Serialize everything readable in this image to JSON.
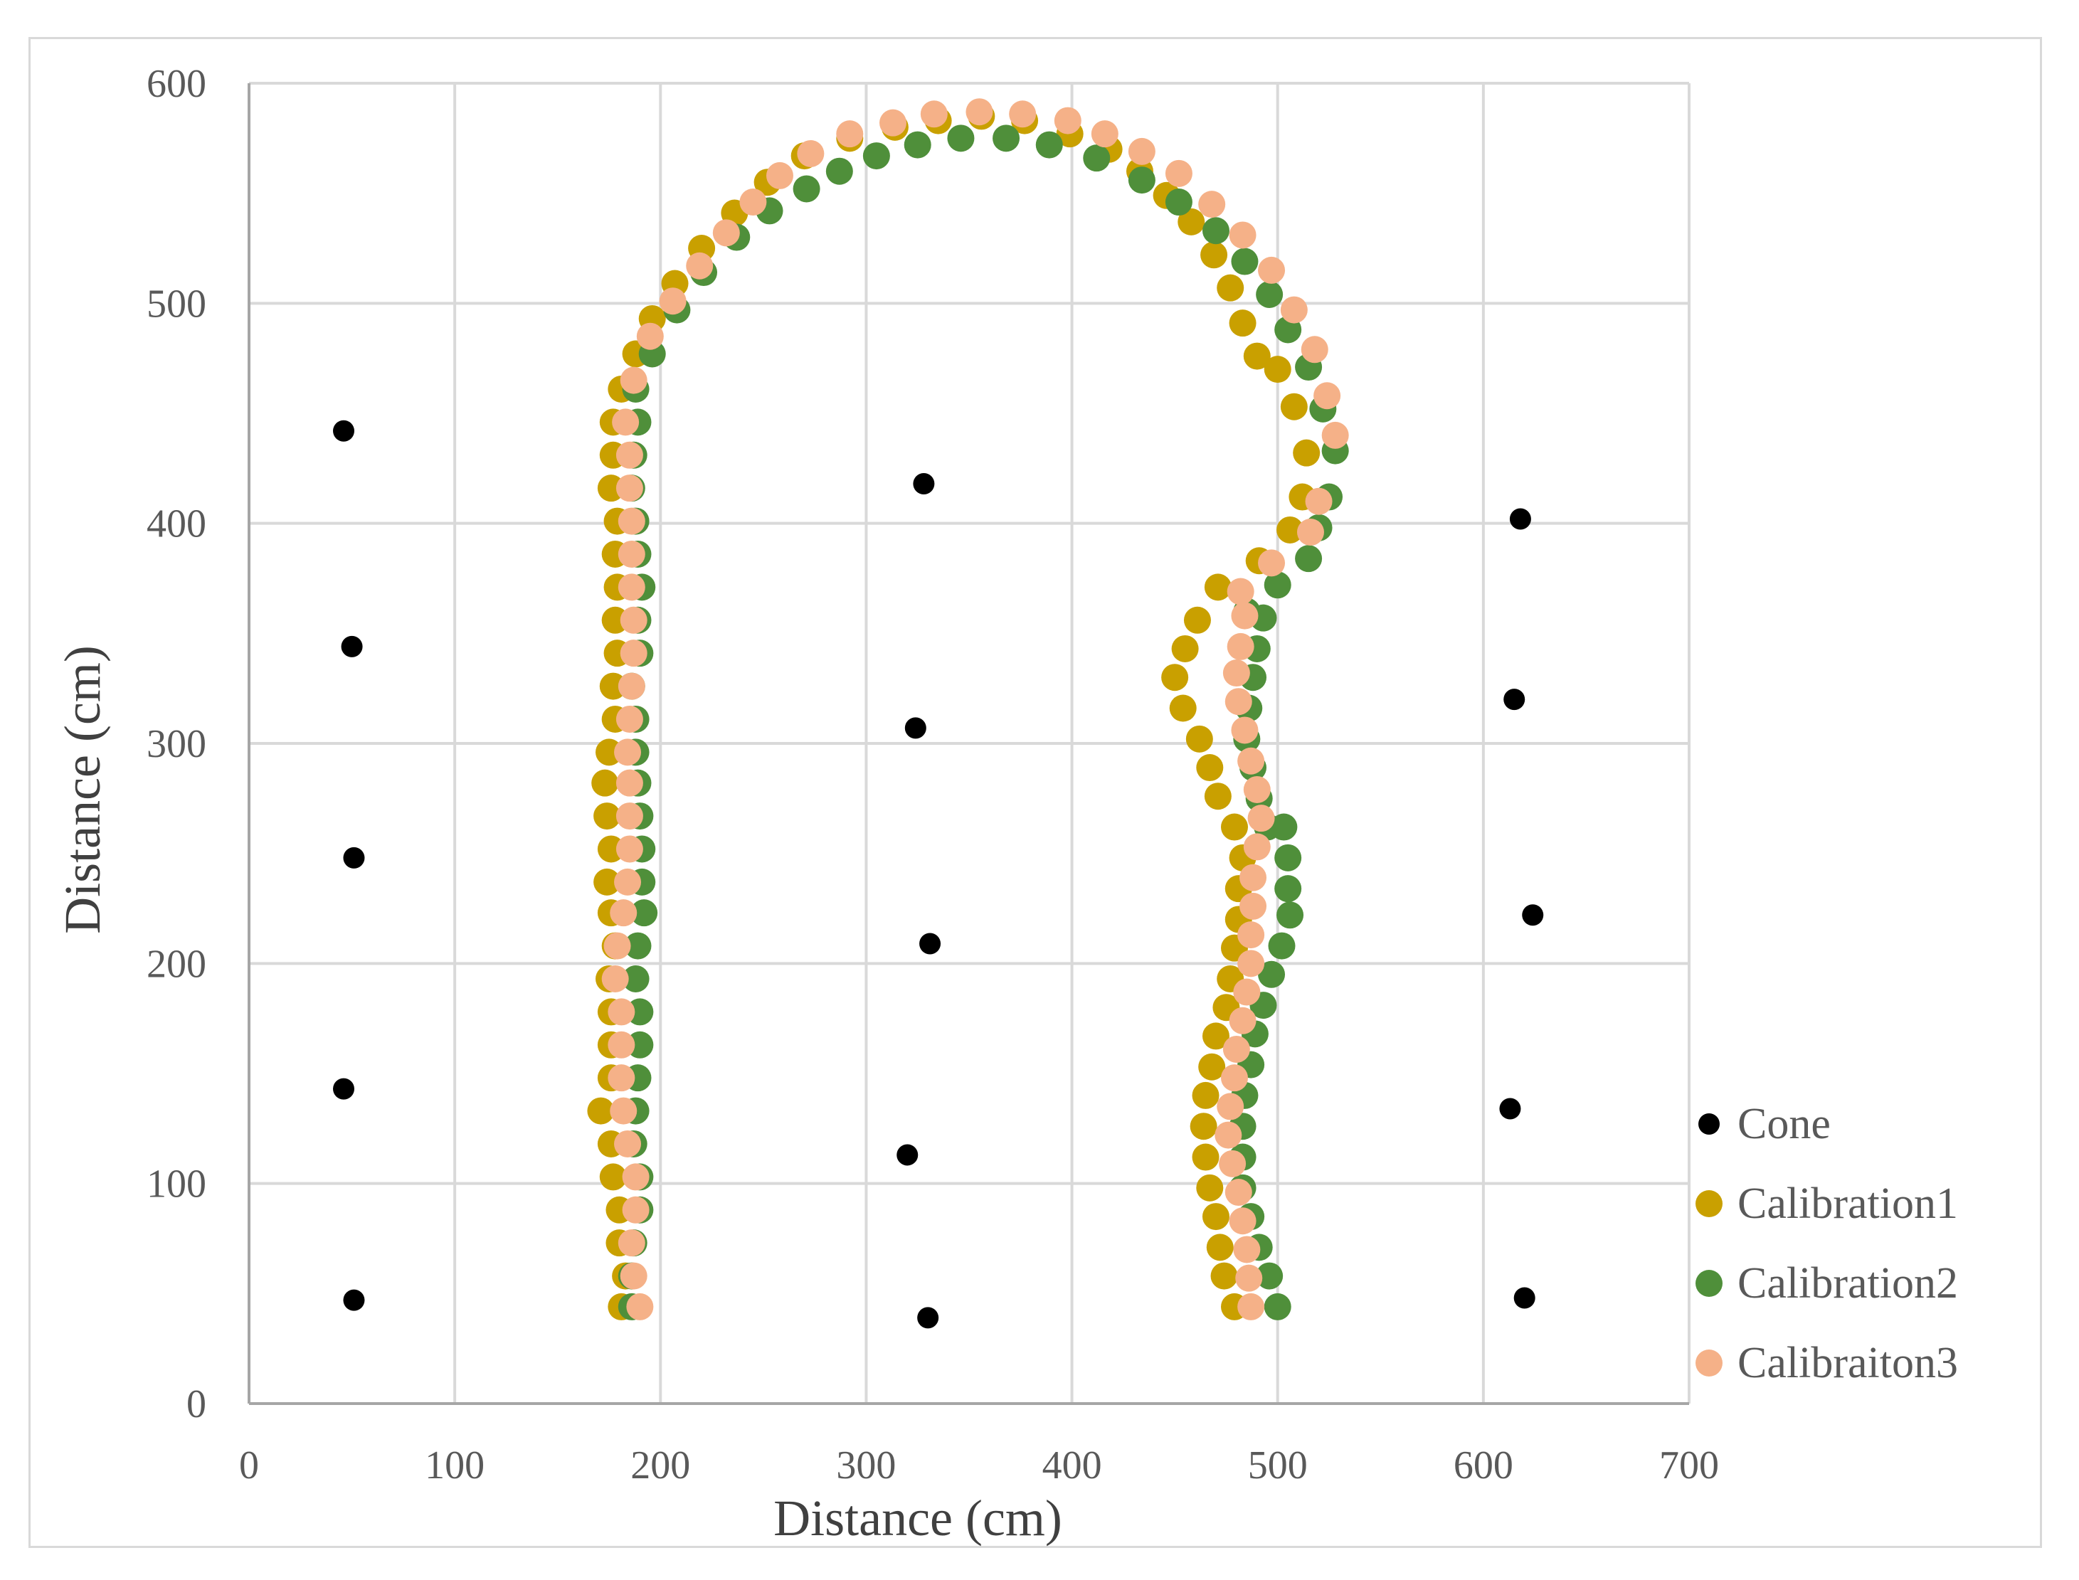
{
  "chart_data": {
    "type": "scatter",
    "title": "",
    "xlabel": "Distance (cm)",
    "ylabel": "Distance (cm)",
    "xlim": [
      0,
      700
    ],
    "ylim": [
      0,
      600
    ],
    "x_ticks": [
      0,
      100,
      200,
      300,
      400,
      500,
      600,
      700
    ],
    "y_ticks": [
      0,
      100,
      200,
      300,
      400,
      500,
      600
    ],
    "grid": true,
    "legend_position": "bottom-right",
    "series": [
      {
        "name": "Cone",
        "color": "#000000",
        "marker": "small-dot",
        "points": [
          [
            46,
            442
          ],
          [
            50,
            344
          ],
          [
            51,
            248
          ],
          [
            46,
            143
          ],
          [
            51,
            47
          ],
          [
            328,
            418
          ],
          [
            324,
            307
          ],
          [
            331,
            209
          ],
          [
            320,
            113
          ],
          [
            330,
            39
          ],
          [
            618,
            402
          ],
          [
            615,
            320
          ],
          [
            624,
            222
          ],
          [
            613,
            134
          ],
          [
            620,
            48
          ]
        ]
      },
      {
        "name": "Calibration1",
        "color": "#c9a000",
        "marker": "large-dot",
        "points": [
          [
            181,
            44
          ],
          [
            183,
            58
          ],
          [
            180,
            73
          ],
          [
            180,
            88
          ],
          [
            177,
            103
          ],
          [
            176,
            118
          ],
          [
            171,
            133
          ],
          [
            176,
            148
          ],
          [
            176,
            163
          ],
          [
            176,
            178
          ],
          [
            175,
            193
          ],
          [
            178,
            208
          ],
          [
            176,
            223
          ],
          [
            174,
            237
          ],
          [
            176,
            252
          ],
          [
            174,
            267
          ],
          [
            173,
            282
          ],
          [
            175,
            296
          ],
          [
            178,
            311
          ],
          [
            177,
            326
          ],
          [
            179,
            341
          ],
          [
            178,
            356
          ],
          [
            179,
            371
          ],
          [
            178,
            386
          ],
          [
            179,
            401
          ],
          [
            176,
            416
          ],
          [
            177,
            431
          ],
          [
            177,
            446
          ],
          [
            181,
            461
          ],
          [
            188,
            477
          ],
          [
            196,
            493
          ],
          [
            207,
            509
          ],
          [
            220,
            525
          ],
          [
            236,
            541
          ],
          [
            252,
            555
          ],
          [
            270,
            567
          ],
          [
            292,
            575
          ],
          [
            314,
            580
          ],
          [
            335,
            583
          ],
          [
            356,
            585
          ],
          [
            377,
            583
          ],
          [
            399,
            577
          ],
          [
            418,
            570
          ],
          [
            433,
            560
          ],
          [
            446,
            549
          ],
          [
            458,
            537
          ],
          [
            469,
            522
          ],
          [
            477,
            507
          ],
          [
            483,
            491
          ],
          [
            490,
            476
          ],
          [
            500,
            470
          ],
          [
            508,
            453
          ],
          [
            514,
            432
          ],
          [
            512,
            412
          ],
          [
            506,
            397
          ],
          [
            491,
            383
          ],
          [
            471,
            371
          ],
          [
            461,
            356
          ],
          [
            455,
            343
          ],
          [
            450,
            330
          ],
          [
            454,
            316
          ],
          [
            462,
            302
          ],
          [
            467,
            289
          ],
          [
            471,
            276
          ],
          [
            479,
            262
          ],
          [
            483,
            248
          ],
          [
            481,
            234
          ],
          [
            481,
            220
          ],
          [
            479,
            207
          ],
          [
            477,
            193
          ],
          [
            475,
            180
          ],
          [
            470,
            167
          ],
          [
            468,
            153
          ],
          [
            465,
            140
          ],
          [
            464,
            126
          ],
          [
            465,
            112
          ],
          [
            467,
            98
          ],
          [
            470,
            85
          ],
          [
            472,
            71
          ],
          [
            474,
            58
          ],
          [
            479,
            44
          ]
        ]
      },
      {
        "name": "Calibration2",
        "color": "#4f8f3a",
        "marker": "large-dot",
        "points": [
          [
            186,
            44
          ],
          [
            186,
            58
          ],
          [
            187,
            73
          ],
          [
            190,
            88
          ],
          [
            190,
            103
          ],
          [
            187,
            118
          ],
          [
            188,
            133
          ],
          [
            189,
            148
          ],
          [
            190,
            163
          ],
          [
            190,
            178
          ],
          [
            188,
            193
          ],
          [
            189,
            208
          ],
          [
            192,
            223
          ],
          [
            191,
            237
          ],
          [
            191,
            252
          ],
          [
            190,
            267
          ],
          [
            189,
            282
          ],
          [
            188,
            296
          ],
          [
            188,
            311
          ],
          [
            186,
            326
          ],
          [
            190,
            341
          ],
          [
            189,
            356
          ],
          [
            191,
            371
          ],
          [
            189,
            386
          ],
          [
            188,
            401
          ],
          [
            186,
            416
          ],
          [
            187,
            431
          ],
          [
            189,
            446
          ],
          [
            188,
            461
          ],
          [
            196,
            477
          ],
          [
            208,
            497
          ],
          [
            221,
            514
          ],
          [
            237,
            530
          ],
          [
            253,
            542
          ],
          [
            271,
            552
          ],
          [
            287,
            560
          ],
          [
            305,
            567
          ],
          [
            325,
            572
          ],
          [
            346,
            575
          ],
          [
            368,
            575
          ],
          [
            389,
            572
          ],
          [
            412,
            566
          ],
          [
            434,
            556
          ],
          [
            452,
            546
          ],
          [
            470,
            533
          ],
          [
            484,
            519
          ],
          [
            496,
            504
          ],
          [
            505,
            488
          ],
          [
            515,
            471
          ],
          [
            522,
            452
          ],
          [
            528,
            433
          ],
          [
            525,
            412
          ],
          [
            520,
            398
          ],
          [
            515,
            384
          ],
          [
            500,
            372
          ],
          [
            485,
            360
          ],
          [
            493,
            357
          ],
          [
            490,
            343
          ],
          [
            488,
            330
          ],
          [
            486,
            316
          ],
          [
            485,
            302
          ],
          [
            488,
            289
          ],
          [
            491,
            275
          ],
          [
            495,
            262
          ],
          [
            503,
            262
          ],
          [
            505,
            248
          ],
          [
            505,
            234
          ],
          [
            506,
            222
          ],
          [
            502,
            208
          ],
          [
            497,
            195
          ],
          [
            493,
            181
          ],
          [
            489,
            168
          ],
          [
            487,
            154
          ],
          [
            484,
            140
          ],
          [
            483,
            126
          ],
          [
            483,
            112
          ],
          [
            483,
            98
          ],
          [
            487,
            85
          ],
          [
            491,
            71
          ],
          [
            496,
            58
          ],
          [
            500,
            44
          ]
        ]
      },
      {
        "name": "Calibraiton3",
        "color": "#f5b188",
        "marker": "large-dot",
        "points": [
          [
            190,
            44
          ],
          [
            187,
            58
          ],
          [
            186,
            73
          ],
          [
            188,
            88
          ],
          [
            188,
            103
          ],
          [
            184,
            118
          ],
          [
            182,
            133
          ],
          [
            181,
            148
          ],
          [
            181,
            163
          ],
          [
            181,
            178
          ],
          [
            178,
            193
          ],
          [
            179,
            208
          ],
          [
            182,
            223
          ],
          [
            184,
            237
          ],
          [
            185,
            252
          ],
          [
            185,
            267
          ],
          [
            185,
            282
          ],
          [
            184,
            296
          ],
          [
            185,
            311
          ],
          [
            186,
            326
          ],
          [
            187,
            341
          ],
          [
            187,
            356
          ],
          [
            186,
            371
          ],
          [
            186,
            386
          ],
          [
            186,
            401
          ],
          [
            185,
            416
          ],
          [
            185,
            431
          ],
          [
            183,
            446
          ],
          [
            187,
            465
          ],
          [
            195,
            485
          ],
          [
            206,
            501
          ],
          [
            219,
            517
          ],
          [
            232,
            532
          ],
          [
            245,
            546
          ],
          [
            258,
            558
          ],
          [
            273,
            568
          ],
          [
            292,
            577
          ],
          [
            313,
            582
          ],
          [
            333,
            586
          ],
          [
            355,
            587
          ],
          [
            376,
            586
          ],
          [
            398,
            583
          ],
          [
            416,
            577
          ],
          [
            434,
            569
          ],
          [
            452,
            559
          ],
          [
            468,
            545
          ],
          [
            483,
            531
          ],
          [
            497,
            515
          ],
          [
            508,
            497
          ],
          [
            518,
            479
          ],
          [
            524,
            458
          ],
          [
            528,
            440
          ],
          [
            520,
            410
          ],
          [
            516,
            396
          ],
          [
            497,
            382
          ],
          [
            482,
            369
          ],
          [
            484,
            358
          ],
          [
            482,
            344
          ],
          [
            480,
            332
          ],
          [
            481,
            319
          ],
          [
            484,
            306
          ],
          [
            487,
            292
          ],
          [
            490,
            279
          ],
          [
            492,
            266
          ],
          [
            490,
            253
          ],
          [
            488,
            239
          ],
          [
            488,
            226
          ],
          [
            487,
            213
          ],
          [
            487,
            200
          ],
          [
            485,
            187
          ],
          [
            483,
            174
          ],
          [
            480,
            161
          ],
          [
            479,
            148
          ],
          [
            477,
            135
          ],
          [
            476,
            122
          ],
          [
            478,
            109
          ],
          [
            481,
            96
          ],
          [
            483,
            83
          ],
          [
            485,
            70
          ],
          [
            486,
            57
          ],
          [
            487,
            44
          ]
        ]
      }
    ]
  }
}
